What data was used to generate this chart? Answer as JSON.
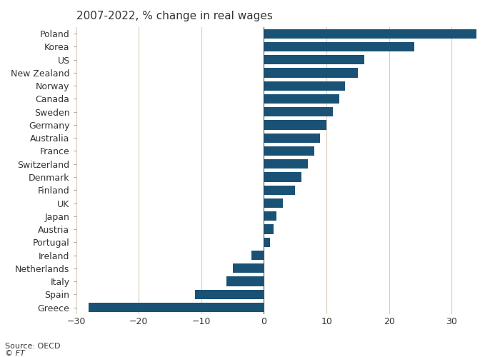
{
  "title": "2007-2022, % change in real wages",
  "source": "Source: OECD",
  "watermark": "© FT",
  "categories": [
    "Poland",
    "Korea",
    "US",
    "New Zealand",
    "Norway",
    "Canada",
    "Sweden",
    "Germany",
    "Australia",
    "France",
    "Switzerland",
    "Denmark",
    "Finland",
    "UK",
    "Japan",
    "Austria",
    "Portugal",
    "Ireland",
    "Netherlands",
    "Italy",
    "Spain",
    "Greece"
  ],
  "values": [
    34,
    24,
    16,
    15,
    13,
    12,
    11,
    10,
    9,
    8,
    7,
    6,
    5,
    3,
    2,
    1.5,
    1,
    -2,
    -5,
    -6,
    -11,
    -28
  ],
  "bar_color": "#1a5276",
  "background_color": "#ffffff",
  "text_color": "#333333",
  "grid_color": "#c8b89a",
  "xlim": [
    -30,
    36
  ],
  "xticks": [
    -30,
    -20,
    -10,
    0,
    10,
    20,
    30
  ],
  "title_fontsize": 11,
  "tick_fontsize": 9,
  "source_fontsize": 8
}
